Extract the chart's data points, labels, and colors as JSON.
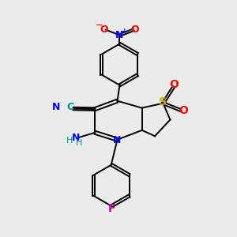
{
  "background_color": "#ebebeb",
  "atom_colors": {
    "C": "#000000",
    "N": "#0000ff",
    "O": "#ff0000",
    "S": "#ccaa00",
    "F": "#cc00aa",
    "H": "#009090",
    "CN_label": "#009090"
  },
  "lw": 1.4,
  "fs": 9,
  "fs_small": 8
}
